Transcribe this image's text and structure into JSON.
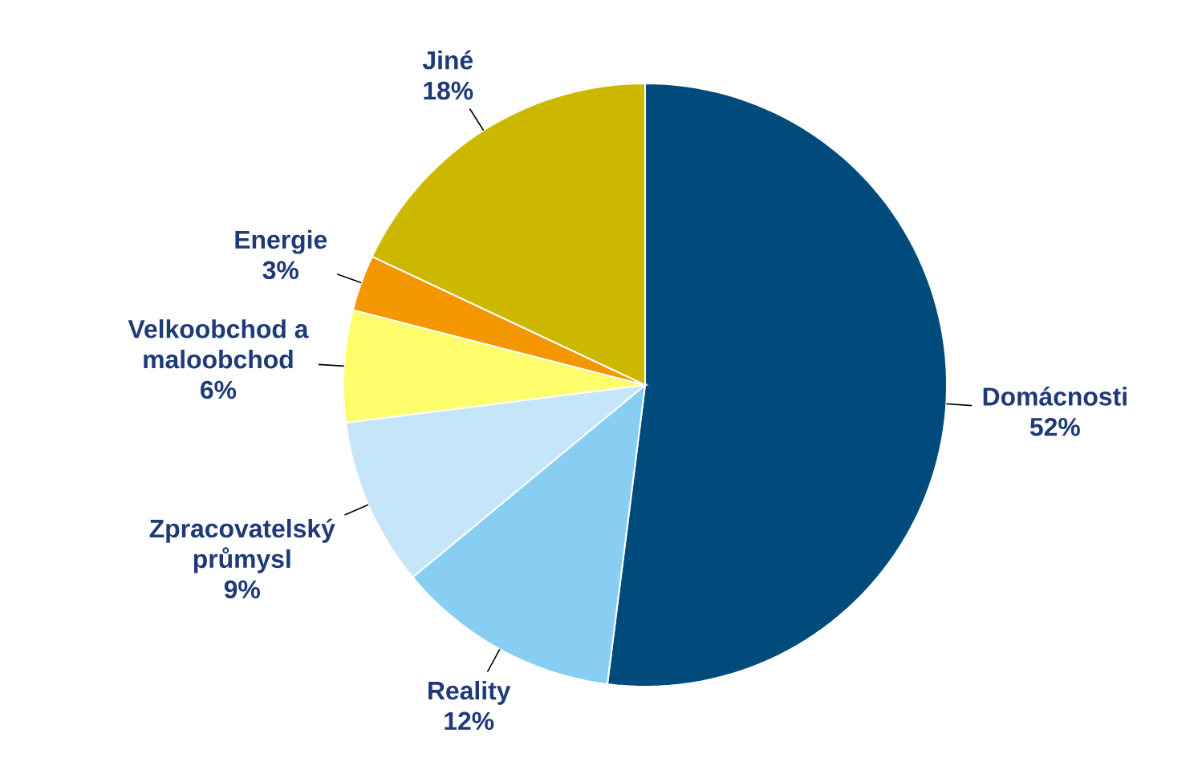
{
  "chart_data": {
    "type": "pie",
    "categories": [
      "Domácnosti",
      "Reality",
      "Zpracovatelský průmysl",
      "Velkoobchod a maloobchod",
      "Energie",
      "Jiné"
    ],
    "values": [
      52,
      12,
      9,
      6,
      3,
      18
    ],
    "colors": [
      "#004b7b",
      "#87cef2",
      "#c5e5f8",
      "#fefd6c",
      "#f39600",
      "#cdb800"
    ],
    "value_labels": [
      "52%",
      "12%",
      "9%",
      "6%",
      "3%",
      "18%"
    ]
  }
}
